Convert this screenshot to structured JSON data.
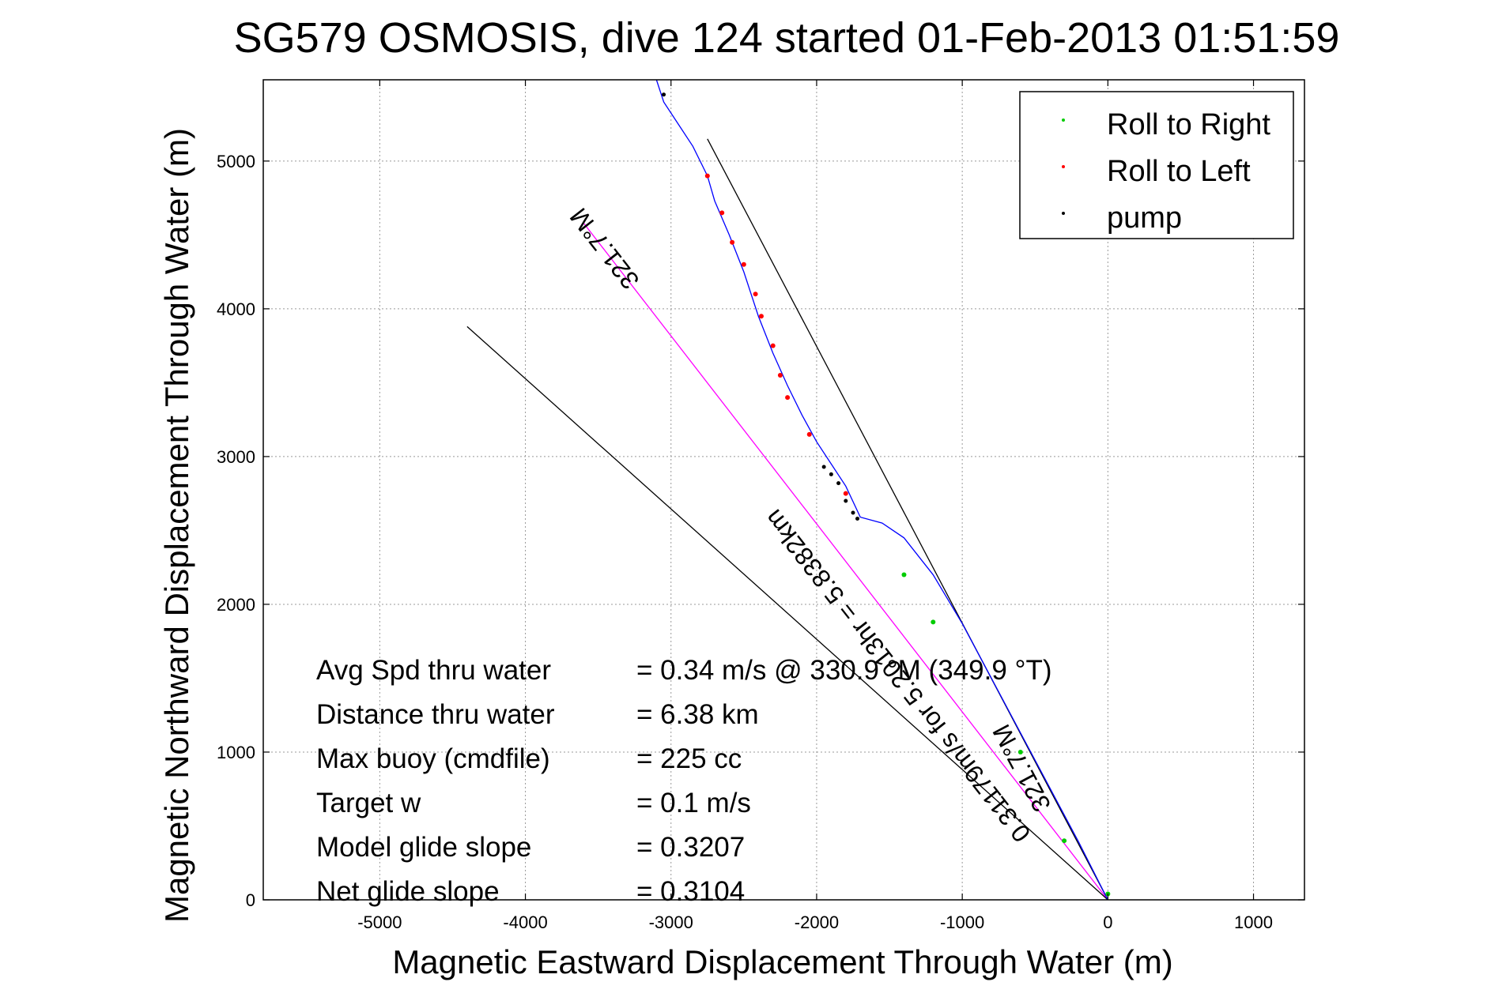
{
  "chart_data": {
    "type": "scatter",
    "title": "SG579 OSMOSIS, dive 124 started 01-Feb-2013 01:51:59",
    "xlabel": "Magnetic Eastward Displacement Through Water (m)",
    "ylabel": "Magnetic Northward Displacement Through Water (m)",
    "xlim": [
      -5800,
      1350
    ],
    "ylim": [
      0,
      5550
    ],
    "xticks": [
      -5000,
      -4000,
      -3000,
      -2000,
      -1000,
      0,
      1000
    ],
    "yticks": [
      0,
      1000,
      2000,
      3000,
      4000,
      5000
    ],
    "grid": true,
    "legend_position": "top-right",
    "legend": [
      {
        "label": "Roll to Right",
        "color": "#00cc00"
      },
      {
        "label": "Roll to Left",
        "color": "#ff0000"
      },
      {
        "label": "pump",
        "color": "#000000"
      }
    ],
    "track": {
      "color": "#0000ff",
      "points": [
        [
          0,
          0
        ],
        [
          -200,
          390
        ],
        [
          -400,
          760
        ],
        [
          -600,
          1130
        ],
        [
          -800,
          1500
        ],
        [
          -1000,
          1870
        ],
        [
          -1200,
          2200
        ],
        [
          -1400,
          2450
        ],
        [
          -1550,
          2550
        ],
        [
          -1700,
          2590
        ],
        [
          -1800,
          2800
        ],
        [
          -1900,
          2950
        ],
        [
          -2000,
          3100
        ],
        [
          -2100,
          3280
        ],
        [
          -2200,
          3480
        ],
        [
          -2300,
          3700
        ],
        [
          -2400,
          3950
        ],
        [
          -2500,
          4250
        ],
        [
          -2600,
          4500
        ],
        [
          -2700,
          4730
        ],
        [
          -2750,
          4900
        ],
        [
          -2850,
          5100
        ],
        [
          -2950,
          5250
        ],
        [
          -3050,
          5400
        ],
        [
          -3100,
          5550
        ]
      ]
    },
    "roll_right_points": [
      [
        -1400,
        2200
      ],
      [
        -1200,
        1880
      ],
      [
        -600,
        1000
      ],
      [
        -300,
        400
      ],
      [
        0,
        40
      ]
    ],
    "roll_left_points": [
      [
        -2750,
        4900
      ],
      [
        -2650,
        4650
      ],
      [
        -2580,
        4450
      ],
      [
        -2500,
        4300
      ],
      [
        -2420,
        4100
      ],
      [
        -2380,
        3950
      ],
      [
        -2300,
        3750
      ],
      [
        -2250,
        3550
      ],
      [
        -2200,
        3400
      ],
      [
        -2050,
        3150
      ],
      [
        -1800,
        2750
      ]
    ],
    "pump_points": [
      [
        -3050,
        5450
      ],
      [
        -1950,
        2930
      ],
      [
        -1900,
        2880
      ],
      [
        -1850,
        2820
      ],
      [
        -1800,
        2700
      ],
      [
        -1750,
        2620
      ],
      [
        -1720,
        2580
      ]
    ],
    "lines": [
      {
        "name": "heading",
        "color": "#000000",
        "from": [
          0,
          0
        ],
        "to": [
          -2750,
          5150
        ]
      },
      {
        "name": "course",
        "color": "#ff00ff",
        "from": [
          0,
          0
        ],
        "to": [
          -3600,
          4580
        ]
      },
      {
        "name": "current",
        "color": "#000000",
        "from": [
          0,
          0
        ],
        "to": [
          -4400,
          3880
        ]
      }
    ],
    "line_labels": [
      "321.7°M",
      "321.7°M",
      "0.31179m/s for 5.2013hr = 5.8382km"
    ],
    "stats": [
      {
        "label": "Avg Spd thru water",
        "value": "=  0.34 m/s @ 330.9 °M (349.9 °T)"
      },
      {
        "label": "Distance thru water",
        "value": "=  6.38 km"
      },
      {
        "label": "Max buoy (cmdfile)",
        "value": "= 225 cc"
      },
      {
        "label": "Target w",
        "value": "= 0.1 m/s"
      },
      {
        "label": "Model glide slope",
        "value": "= 0.3207"
      },
      {
        "label": "Net glide slope",
        "value": "= 0.3104"
      }
    ]
  }
}
